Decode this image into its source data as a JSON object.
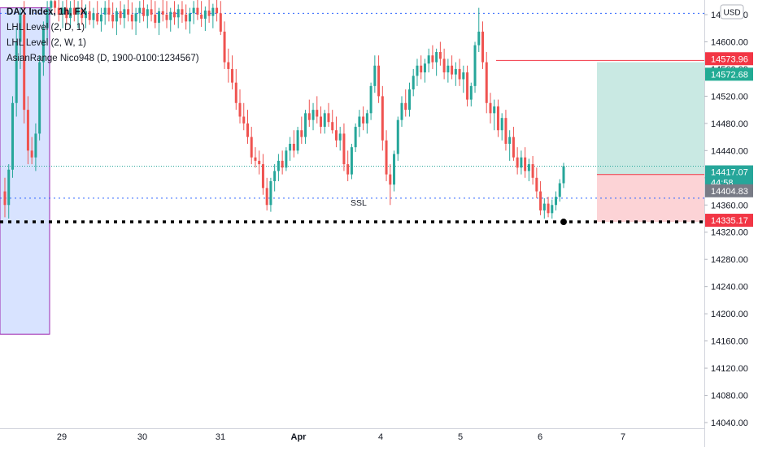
{
  "chart_data": {
    "type": "candlestick",
    "legend": [
      {
        "text": "DAX Index, 1h, FX",
        "bold": true
      },
      {
        "text": "LHL Level (2, D, 1)"
      },
      {
        "text": "LHL Level (2, W, 1)"
      },
      {
        "text": "AsianRange Nico948 (D, 1900-0100:1234567)"
      }
    ],
    "currency": "USD",
    "y_axis": {
      "min": 14030,
      "max": 14650,
      "ticks": [
        14040,
        14080,
        14120,
        14160,
        14200,
        14240,
        14280,
        14320,
        14360,
        14400,
        14440,
        14480,
        14520,
        14560,
        14600,
        14640
      ]
    },
    "x_axis": {
      "labels": [
        "29",
        "30",
        "31",
        "Apr",
        "4",
        "5",
        "6",
        "7"
      ]
    },
    "price_tags": [
      {
        "value": "14573.96",
        "color": "#f23645"
      },
      {
        "value": "14572.68",
        "color": "#22ab94"
      },
      {
        "value": "14417.07",
        "sub": "44:58",
        "color": "#26a69a"
      },
      {
        "value": "14404.83",
        "color": "#787b86"
      },
      {
        "value": "14335.17",
        "color": "#f23645"
      }
    ],
    "levels": {
      "top_dotted": 14642,
      "current": 14417.07,
      "ssl": 14370,
      "support": 14335.17,
      "resistance": 14572.68,
      "entry": 14404.83,
      "target": 14570,
      "stop": 14335.17
    },
    "annotations": [
      {
        "text": "SSL"
      }
    ],
    "asian_range": {
      "top": 14650,
      "bottom": 14170
    },
    "candles": [
      {
        "o": 14380,
        "h": 14400,
        "l": 14342,
        "c": 14360
      },
      {
        "o": 14360,
        "h": 14420,
        "l": 14340,
        "c": 14412
      },
      {
        "o": 14412,
        "h": 14520,
        "l": 14400,
        "c": 14510
      },
      {
        "o": 14510,
        "h": 14620,
        "l": 14490,
        "c": 14600
      },
      {
        "o": 14600,
        "h": 14650,
        "l": 14560,
        "c": 14640
      },
      {
        "o": 14640,
        "h": 14660,
        "l": 14480,
        "c": 14500
      },
      {
        "o": 14500,
        "h": 14520,
        "l": 14420,
        "c": 14440
      },
      {
        "o": 14440,
        "h": 14460,
        "l": 14420,
        "c": 14430
      },
      {
        "o": 14430,
        "h": 14480,
        "l": 14410,
        "c": 14465
      },
      {
        "o": 14465,
        "h": 14580,
        "l": 14455,
        "c": 14570
      },
      {
        "o": 14570,
        "h": 14630,
        "l": 14550,
        "c": 14620
      },
      {
        "o": 14620,
        "h": 14660,
        "l": 14600,
        "c": 14650
      },
      {
        "o": 14650,
        "h": 14670,
        "l": 14640,
        "c": 14660
      },
      {
        "o": 14660,
        "h": 14680,
        "l": 14640,
        "c": 14650
      },
      {
        "o": 14650,
        "h": 14665,
        "l": 14630,
        "c": 14640
      },
      {
        "o": 14640,
        "h": 14660,
        "l": 14620,
        "c": 14650
      },
      {
        "o": 14650,
        "h": 14665,
        "l": 14625,
        "c": 14635
      },
      {
        "o": 14635,
        "h": 14660,
        "l": 14620,
        "c": 14650
      },
      {
        "o": 14650,
        "h": 14665,
        "l": 14630,
        "c": 14640
      },
      {
        "o": 14640,
        "h": 14660,
        "l": 14620,
        "c": 14648
      },
      {
        "o": 14648,
        "h": 14665,
        "l": 14625,
        "c": 14635
      },
      {
        "o": 14635,
        "h": 14655,
        "l": 14620,
        "c": 14645
      },
      {
        "o": 14645,
        "h": 14660,
        "l": 14625,
        "c": 14632
      },
      {
        "o": 14632,
        "h": 14650,
        "l": 14620,
        "c": 14642
      },
      {
        "o": 14642,
        "h": 14660,
        "l": 14625,
        "c": 14630
      },
      {
        "o": 14630,
        "h": 14650,
        "l": 14615,
        "c": 14640
      },
      {
        "o": 14640,
        "h": 14660,
        "l": 14625,
        "c": 14650
      },
      {
        "o": 14650,
        "h": 14665,
        "l": 14630,
        "c": 14640
      },
      {
        "o": 14640,
        "h": 14658,
        "l": 14620,
        "c": 14630
      },
      {
        "o": 14630,
        "h": 14650,
        "l": 14610,
        "c": 14645
      },
      {
        "o": 14645,
        "h": 14660,
        "l": 14625,
        "c": 14635
      },
      {
        "o": 14635,
        "h": 14655,
        "l": 14620,
        "c": 14648
      },
      {
        "o": 14648,
        "h": 14665,
        "l": 14630,
        "c": 14640
      },
      {
        "o": 14640,
        "h": 14658,
        "l": 14618,
        "c": 14630
      },
      {
        "o": 14630,
        "h": 14650,
        "l": 14610,
        "c": 14642
      },
      {
        "o": 14642,
        "h": 14660,
        "l": 14628,
        "c": 14650
      },
      {
        "o": 14650,
        "h": 14665,
        "l": 14630,
        "c": 14638
      },
      {
        "o": 14638,
        "h": 14655,
        "l": 14620,
        "c": 14648
      },
      {
        "o": 14648,
        "h": 14665,
        "l": 14630,
        "c": 14640
      },
      {
        "o": 14640,
        "h": 14660,
        "l": 14620,
        "c": 14628
      },
      {
        "o": 14628,
        "h": 14650,
        "l": 14610,
        "c": 14645
      },
      {
        "o": 14645,
        "h": 14665,
        "l": 14630,
        "c": 14640
      },
      {
        "o": 14640,
        "h": 14660,
        "l": 14620,
        "c": 14632
      },
      {
        "o": 14632,
        "h": 14650,
        "l": 14615,
        "c": 14644
      },
      {
        "o": 14644,
        "h": 14660,
        "l": 14625,
        "c": 14636
      },
      {
        "o": 14636,
        "h": 14655,
        "l": 14620,
        "c": 14648
      },
      {
        "o": 14648,
        "h": 14660,
        "l": 14628,
        "c": 14640
      },
      {
        "o": 14640,
        "h": 14655,
        "l": 14618,
        "c": 14630
      },
      {
        "o": 14630,
        "h": 14650,
        "l": 14612,
        "c": 14642
      },
      {
        "o": 14642,
        "h": 14660,
        "l": 14626,
        "c": 14650
      },
      {
        "o": 14650,
        "h": 14665,
        "l": 14632,
        "c": 14640
      },
      {
        "o": 14640,
        "h": 14660,
        "l": 14622,
        "c": 14634
      },
      {
        "o": 14634,
        "h": 14652,
        "l": 14616,
        "c": 14646
      },
      {
        "o": 14646,
        "h": 14662,
        "l": 14628,
        "c": 14638
      },
      {
        "o": 14638,
        "h": 14656,
        "l": 14620,
        "c": 14650
      },
      {
        "o": 14650,
        "h": 14665,
        "l": 14630,
        "c": 14642
      },
      {
        "o": 14642,
        "h": 14660,
        "l": 14610,
        "c": 14615
      },
      {
        "o": 14615,
        "h": 14630,
        "l": 14560,
        "c": 14570
      },
      {
        "o": 14570,
        "h": 14590,
        "l": 14540,
        "c": 14560
      },
      {
        "o": 14560,
        "h": 14580,
        "l": 14530,
        "c": 14540
      },
      {
        "o": 14540,
        "h": 14560,
        "l": 14500,
        "c": 14510
      },
      {
        "o": 14510,
        "h": 14530,
        "l": 14480,
        "c": 14490
      },
      {
        "o": 14490,
        "h": 14510,
        "l": 14470,
        "c": 14480
      },
      {
        "o": 14480,
        "h": 14500,
        "l": 14450,
        "c": 14460
      },
      {
        "o": 14460,
        "h": 14475,
        "l": 14420,
        "c": 14430
      },
      {
        "o": 14430,
        "h": 14445,
        "l": 14415,
        "c": 14425
      },
      {
        "o": 14425,
        "h": 14440,
        "l": 14405,
        "c": 14420
      },
      {
        "o": 14420,
        "h": 14435,
        "l": 14375,
        "c": 14385
      },
      {
        "o": 14385,
        "h": 14400,
        "l": 14352,
        "c": 14360
      },
      {
        "o": 14360,
        "h": 14400,
        "l": 14350,
        "c": 14395
      },
      {
        "o": 14395,
        "h": 14420,
        "l": 14380,
        "c": 14410
      },
      {
        "o": 14410,
        "h": 14435,
        "l": 14395,
        "c": 14425
      },
      {
        "o": 14425,
        "h": 14440,
        "l": 14405,
        "c": 14415
      },
      {
        "o": 14415,
        "h": 14445,
        "l": 14410,
        "c": 14440
      },
      {
        "o": 14440,
        "h": 14460,
        "l": 14425,
        "c": 14450
      },
      {
        "o": 14450,
        "h": 14470,
        "l": 14430,
        "c": 14440
      },
      {
        "o": 14440,
        "h": 14475,
        "l": 14435,
        "c": 14470
      },
      {
        "o": 14470,
        "h": 14490,
        "l": 14450,
        "c": 14460
      },
      {
        "o": 14460,
        "h": 14500,
        "l": 14450,
        "c": 14495
      },
      {
        "o": 14495,
        "h": 14515,
        "l": 14475,
        "c": 14485
      },
      {
        "o": 14485,
        "h": 14510,
        "l": 14470,
        "c": 14500
      },
      {
        "o": 14500,
        "h": 14520,
        "l": 14480,
        "c": 14490
      },
      {
        "o": 14490,
        "h": 14505,
        "l": 14465,
        "c": 14475
      },
      {
        "o": 14475,
        "h": 14500,
        "l": 14465,
        "c": 14495
      },
      {
        "o": 14495,
        "h": 14510,
        "l": 14475,
        "c": 14482
      },
      {
        "o": 14482,
        "h": 14500,
        "l": 14465,
        "c": 14470
      },
      {
        "o": 14470,
        "h": 14490,
        "l": 14445,
        "c": 14455
      },
      {
        "o": 14455,
        "h": 14475,
        "l": 14440,
        "c": 14465
      },
      {
        "o": 14465,
        "h": 14480,
        "l": 14410,
        "c": 14420
      },
      {
        "o": 14420,
        "h": 14440,
        "l": 14395,
        "c": 14405
      },
      {
        "o": 14405,
        "h": 14450,
        "l": 14398,
        "c": 14445
      },
      {
        "o": 14445,
        "h": 14480,
        "l": 14438,
        "c": 14475
      },
      {
        "o": 14475,
        "h": 14500,
        "l": 14460,
        "c": 14490
      },
      {
        "o": 14490,
        "h": 14505,
        "l": 14470,
        "c": 14480
      },
      {
        "o": 14480,
        "h": 14500,
        "l": 14465,
        "c": 14495
      },
      {
        "o": 14495,
        "h": 14540,
        "l": 14485,
        "c": 14535
      },
      {
        "o": 14535,
        "h": 14580,
        "l": 14525,
        "c": 14565
      },
      {
        "o": 14565,
        "h": 14580,
        "l": 14510,
        "c": 14520
      },
      {
        "o": 14520,
        "h": 14535,
        "l": 14440,
        "c": 14455
      },
      {
        "o": 14455,
        "h": 14470,
        "l": 14395,
        "c": 14405
      },
      {
        "o": 14405,
        "h": 14420,
        "l": 14360,
        "c": 14390
      },
      {
        "o": 14390,
        "h": 14440,
        "l": 14380,
        "c": 14435
      },
      {
        "o": 14435,
        "h": 14490,
        "l": 14425,
        "c": 14485
      },
      {
        "o": 14485,
        "h": 14520,
        "l": 14475,
        "c": 14510
      },
      {
        "o": 14510,
        "h": 14530,
        "l": 14490,
        "c": 14500
      },
      {
        "o": 14500,
        "h": 14540,
        "l": 14490,
        "c": 14530
      },
      {
        "o": 14530,
        "h": 14560,
        "l": 14520,
        "c": 14550
      },
      {
        "o": 14550,
        "h": 14575,
        "l": 14535,
        "c": 14565
      },
      {
        "o": 14565,
        "h": 14580,
        "l": 14545,
        "c": 14555
      },
      {
        "o": 14555,
        "h": 14575,
        "l": 14540,
        "c": 14568
      },
      {
        "o": 14568,
        "h": 14590,
        "l": 14555,
        "c": 14580
      },
      {
        "o": 14580,
        "h": 14595,
        "l": 14560,
        "c": 14570
      },
      {
        "o": 14570,
        "h": 14590,
        "l": 14550,
        "c": 14585
      },
      {
        "o": 14585,
        "h": 14600,
        "l": 14565,
        "c": 14575
      },
      {
        "o": 14575,
        "h": 14590,
        "l": 14545,
        "c": 14555
      },
      {
        "o": 14555,
        "h": 14575,
        "l": 14540,
        "c": 14565
      },
      {
        "o": 14565,
        "h": 14580,
        "l": 14545,
        "c": 14552
      },
      {
        "o": 14552,
        "h": 14570,
        "l": 14535,
        "c": 14560
      },
      {
        "o": 14560,
        "h": 14575,
        "l": 14535,
        "c": 14545
      },
      {
        "o": 14545,
        "h": 14565,
        "l": 14525,
        "c": 14555
      },
      {
        "o": 14555,
        "h": 14565,
        "l": 14505,
        "c": 14515
      },
      {
        "o": 14515,
        "h": 14540,
        "l": 14505,
        "c": 14535
      },
      {
        "o": 14535,
        "h": 14600,
        "l": 14525,
        "c": 14595
      },
      {
        "o": 14595,
        "h": 14650,
        "l": 14585,
        "c": 14615
      },
      {
        "o": 14615,
        "h": 14630,
        "l": 14560,
        "c": 14570
      },
      {
        "o": 14570,
        "h": 14585,
        "l": 14495,
        "c": 14510
      },
      {
        "o": 14510,
        "h": 14525,
        "l": 14480,
        "c": 14495
      },
      {
        "o": 14495,
        "h": 14515,
        "l": 14470,
        "c": 14505
      },
      {
        "o": 14505,
        "h": 14515,
        "l": 14460,
        "c": 14470
      },
      {
        "o": 14470,
        "h": 14495,
        "l": 14455,
        "c": 14488
      },
      {
        "o": 14488,
        "h": 14500,
        "l": 14440,
        "c": 14450
      },
      {
        "o": 14450,
        "h": 14470,
        "l": 14425,
        "c": 14460
      },
      {
        "o": 14460,
        "h": 14475,
        "l": 14425,
        "c": 14430
      },
      {
        "o": 14430,
        "h": 14445,
        "l": 14405,
        "c": 14415
      },
      {
        "o": 14415,
        "h": 14440,
        "l": 14405,
        "c": 14430
      },
      {
        "o": 14430,
        "h": 14445,
        "l": 14400,
        "c": 14410
      },
      {
        "o": 14410,
        "h": 14428,
        "l": 14395,
        "c": 14420
      },
      {
        "o": 14420,
        "h": 14432,
        "l": 14390,
        "c": 14400
      },
      {
        "o": 14400,
        "h": 14415,
        "l": 14370,
        "c": 14380
      },
      {
        "o": 14380,
        "h": 14395,
        "l": 14345,
        "c": 14352
      },
      {
        "o": 14352,
        "h": 14370,
        "l": 14340,
        "c": 14362
      },
      {
        "o": 14362,
        "h": 14372,
        "l": 14342,
        "c": 14348
      },
      {
        "o": 14348,
        "h": 14368,
        "l": 14340,
        "c": 14360
      },
      {
        "o": 14360,
        "h": 14380,
        "l": 14352,
        "c": 14372
      },
      {
        "o": 14372,
        "h": 14398,
        "l": 14365,
        "c": 14392
      },
      {
        "o": 14392,
        "h": 14422,
        "l": 14385,
        "c": 14417.07
      }
    ]
  }
}
